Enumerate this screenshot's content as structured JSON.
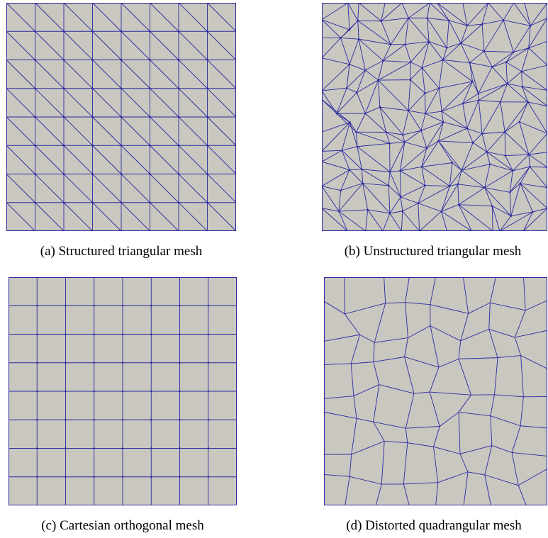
{
  "colors": {
    "mesh_fill": "#c9c7c0",
    "mesh_edge": "#2b2ba0",
    "background": "#ffffff"
  },
  "panels": [
    {
      "id": "a",
      "caption": "(a) Structured triangular mesh",
      "mesh_type": "structured-triangular",
      "grid_divisions": 8
    },
    {
      "id": "b",
      "caption": "(b) Unstructured triangular mesh",
      "mesh_type": "unstructured-triangular"
    },
    {
      "id": "c",
      "caption": "(c) Cartesian orthogonal mesh",
      "mesh_type": "cartesian-orthogonal",
      "grid_divisions": 8
    },
    {
      "id": "d",
      "caption": "(d) Distorted quadrangular mesh",
      "mesh_type": "distorted-quadrangular",
      "grid_divisions": 8
    }
  ]
}
